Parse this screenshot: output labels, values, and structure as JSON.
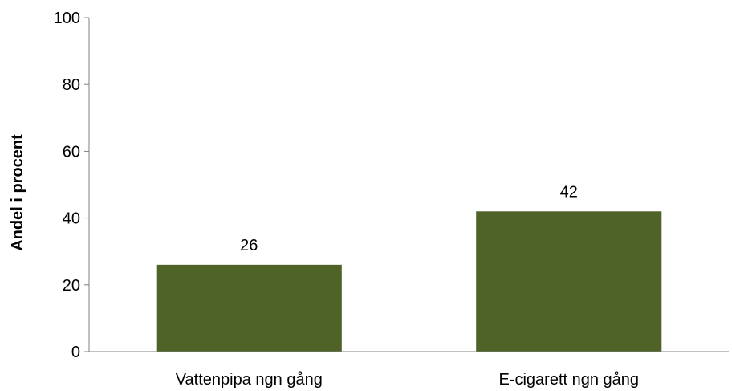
{
  "chart_data": {
    "type": "bar",
    "categories": [
      "Vattenpipa ngn gång",
      "E-cigarett ngn gång"
    ],
    "values": [
      26,
      42
    ],
    "data_labels": [
      "26",
      "42"
    ],
    "title": "",
    "xlabel": "",
    "ylabel": "Andel i procent",
    "ylim": [
      0,
      100
    ],
    "yticks": [
      0,
      20,
      40,
      60,
      80,
      100
    ],
    "ytick_labels": [
      "0",
      "20",
      "40",
      "60",
      "80",
      "100"
    ],
    "grid": false,
    "legend": "none",
    "bar_color": "#4F6228",
    "axis_color": "#808080"
  }
}
